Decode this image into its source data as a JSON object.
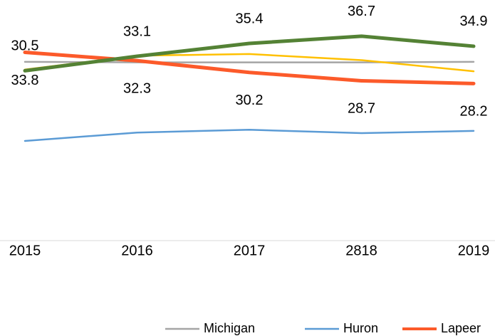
{
  "chart_data": {
    "type": "line",
    "categories": [
      "2015",
      "2016",
      "2017",
      "2818",
      "2019"
    ],
    "ylim": [
      0,
      43.2
    ],
    "series": [
      {
        "name": "Michigan",
        "color": "#a5a5a5",
        "values": [
          32.1,
          32.0,
          32.0,
          32.0,
          32.1
        ]
      },
      {
        "name": "Huron",
        "color": "#5b9bd5",
        "values": [
          17.9,
          19.4,
          19.9,
          19.3,
          19.7
        ]
      },
      {
        "name": "Lapeer",
        "color": "#fc5a2a",
        "values": [
          33.8,
          32.3,
          30.2,
          28.7,
          28.2
        ],
        "labels": "below"
      },
      {
        "color": "#ffc000",
        "values": [
          30.7,
          33.2,
          33.5,
          32.4,
          30.4
        ]
      },
      {
        "color": "#548235",
        "values": [
          30.5,
          33.1,
          35.4,
          36.7,
          34.9
        ],
        "labels": "above"
      }
    ]
  }
}
